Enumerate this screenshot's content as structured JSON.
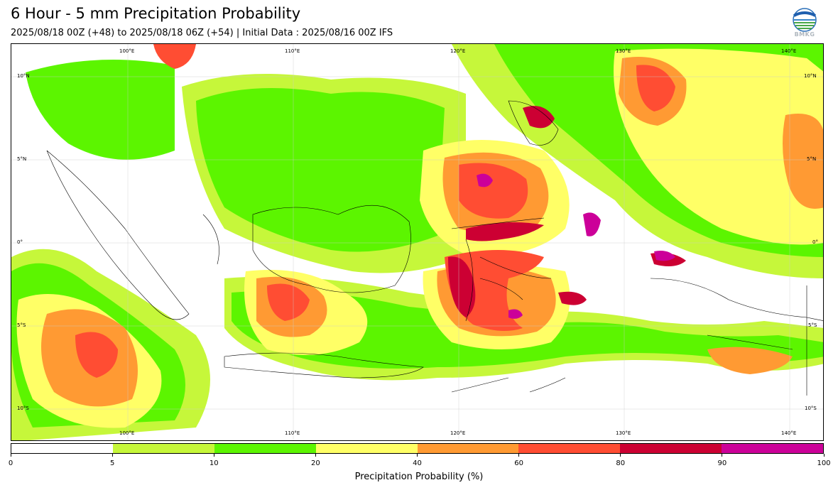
{
  "header": {
    "title": "6 Hour - 5 mm Precipitation Probability",
    "subtitle": "2025/08/18 00Z (+48) to 2025/08/18 06Z (+54) | Initial Data : 2025/08/16 00Z IFS",
    "logo_text": "BMKG"
  },
  "map": {
    "lon_top": [
      "100°E",
      "110°E",
      "120°E",
      "130°E",
      "140°E"
    ],
    "lon_bottom": [
      "100°E",
      "110°E",
      "120°E",
      "130°E",
      "140°E"
    ],
    "lat_left": [
      "10°N",
      "5°N",
      "0°",
      "5°S",
      "10°S"
    ],
    "lat_right": [
      "10°N",
      "5°N",
      "0°",
      "5°S",
      "10°S"
    ]
  },
  "colorbar": {
    "ticks": [
      "0",
      "5",
      "10",
      "20",
      "40",
      "60",
      "80",
      "90",
      "100"
    ],
    "colors": [
      "#ffffff",
      "#c6f73a",
      "#5cf500",
      "#ffff66",
      "#ff9a33",
      "#ff4d33",
      "#cc0033",
      "#cc0099"
    ],
    "label": "Precipitation Probability (%)"
  }
}
